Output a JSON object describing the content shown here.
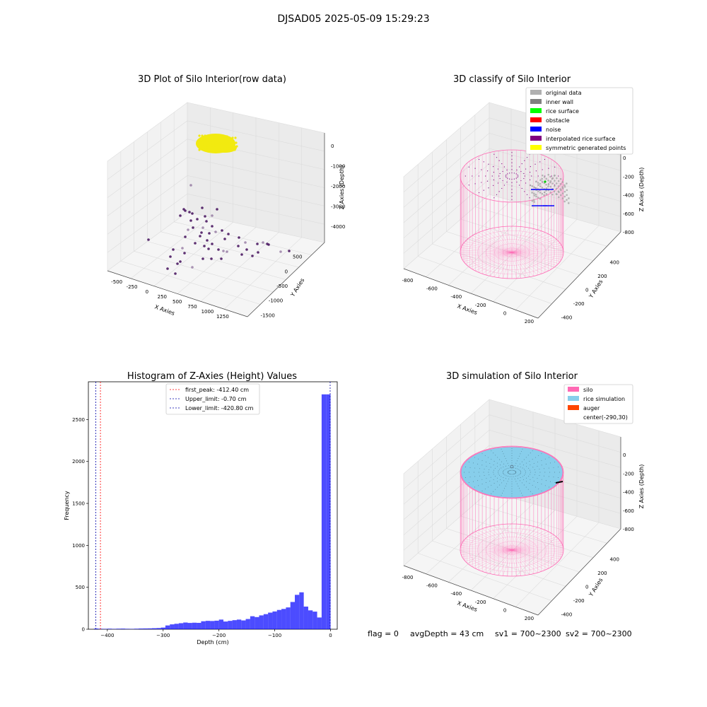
{
  "suptitle": "DJSAD05 2025-05-09 15:29:23",
  "footer": {
    "flag": "flag = 0",
    "avg_depth": "avgDepth = 43 cm",
    "sv1": "sv1 = 700~2300",
    "sv2": "sv2 = 700~2300"
  },
  "colors": {
    "raw_surface": "#f2ea10",
    "raw_points": "#4b1a63",
    "grey": "#a8a8a8",
    "noise": "#0000ff",
    "silo": "#ff69b4",
    "rice": "#87ceeb",
    "auger": "#ff4500",
    "hist_bar": "#0000ff",
    "first_peak": "#ff0000",
    "limit": "#0000aa"
  },
  "chart_data": [
    {
      "type": "scatter",
      "title": "3D Plot of Silo Interior(row data)",
      "xlabel": "X Axies",
      "ylabel": "Y Axies",
      "zlabel": "Z Axies (Depth)",
      "x_ticks": [
        "-500",
        "-250",
        "0",
        "250",
        "500",
        "750",
        "1000",
        "1250"
      ],
      "y_ticks": [
        "500",
        "0",
        "-500",
        "-1000",
        "-1500"
      ],
      "z_ticks": [
        "0",
        "-1000",
        "-2000",
        "-3000",
        "-4000"
      ]
    },
    {
      "type": "scatter",
      "title": "3D classify of Silo Interior",
      "xlabel": "X Axies",
      "ylabel": "Y Axies",
      "zlabel": "Z Axies (Depth)",
      "x_ticks": [
        "-800",
        "-600",
        "-400",
        "-200",
        "0",
        "200"
      ],
      "y_ticks": [
        "400",
        "200",
        "0",
        "-200",
        "-400"
      ],
      "z_ticks": [
        "0",
        "-200",
        "-400",
        "-600",
        "-800"
      ],
      "legend": [
        {
          "label": "original data",
          "color": "#b0b0b0"
        },
        {
          "label": "inner wall",
          "color": "#808080"
        },
        {
          "label": "rice surface",
          "color": "#00ff00"
        },
        {
          "label": "obstacle",
          "color": "#ff0000"
        },
        {
          "label": "noise",
          "color": "#0000ff"
        },
        {
          "label": "interpolated rice surface",
          "color": "#800080"
        },
        {
          "label": "symmetric generated points",
          "color": "#ffff00"
        }
      ]
    },
    {
      "type": "bar",
      "title": "Histogram of Z-Axies (Height) Values",
      "xlabel": "Depth (cm)",
      "ylabel": "Frequency",
      "xlim": [
        -434,
        12
      ],
      "ylim": [
        0,
        2950
      ],
      "x_ticks": [
        -400,
        -300,
        -200,
        -100,
        0
      ],
      "y_ticks": [
        0,
        500,
        1000,
        1500,
        2000,
        2500
      ],
      "bin_width": 8,
      "bins": [
        {
          "x": -424,
          "y": 8
        },
        {
          "x": -416,
          "y": 5
        },
        {
          "x": -408,
          "y": 4
        },
        {
          "x": -400,
          "y": 6
        },
        {
          "x": -392,
          "y": 4
        },
        {
          "x": -384,
          "y": 6
        },
        {
          "x": -376,
          "y": 7
        },
        {
          "x": -368,
          "y": 5
        },
        {
          "x": -360,
          "y": 4
        },
        {
          "x": -352,
          "y": 6
        },
        {
          "x": -344,
          "y": 8
        },
        {
          "x": -336,
          "y": 9
        },
        {
          "x": -328,
          "y": 10
        },
        {
          "x": -320,
          "y": 12
        },
        {
          "x": -312,
          "y": 14
        },
        {
          "x": -304,
          "y": 20
        },
        {
          "x": -296,
          "y": 45
        },
        {
          "x": -288,
          "y": 58
        },
        {
          "x": -280,
          "y": 65
        },
        {
          "x": -272,
          "y": 72
        },
        {
          "x": -264,
          "y": 80
        },
        {
          "x": -256,
          "y": 75
        },
        {
          "x": -248,
          "y": 78
        },
        {
          "x": -240,
          "y": 76
        },
        {
          "x": -232,
          "y": 95
        },
        {
          "x": -224,
          "y": 100
        },
        {
          "x": -216,
          "y": 98
        },
        {
          "x": -208,
          "y": 102
        },
        {
          "x": -200,
          "y": 115
        },
        {
          "x": -192,
          "y": 92
        },
        {
          "x": -184,
          "y": 100
        },
        {
          "x": -176,
          "y": 108
        },
        {
          "x": -168,
          "y": 115
        },
        {
          "x": -160,
          "y": 105
        },
        {
          "x": -152,
          "y": 122
        },
        {
          "x": -144,
          "y": 155
        },
        {
          "x": -136,
          "y": 145
        },
        {
          "x": -128,
          "y": 165
        },
        {
          "x": -120,
          "y": 180
        },
        {
          "x": -112,
          "y": 198
        },
        {
          "x": -104,
          "y": 212
        },
        {
          "x": -96,
          "y": 230
        },
        {
          "x": -88,
          "y": 242
        },
        {
          "x": -80,
          "y": 260
        },
        {
          "x": -72,
          "y": 325
        },
        {
          "x": -64,
          "y": 410
        },
        {
          "x": -56,
          "y": 440
        },
        {
          "x": -48,
          "y": 270
        },
        {
          "x": -40,
          "y": 225
        },
        {
          "x": -32,
          "y": 210
        },
        {
          "x": -24,
          "y": 140
        },
        {
          "x": -16,
          "y": 2800
        },
        {
          "x": -8,
          "y": 2800
        }
      ],
      "vlines": [
        {
          "label": "first_peak: -412.40 cm",
          "x": -412.4,
          "style": "first_peak"
        },
        {
          "label": "Upper_limit: -0.70 cm",
          "x": -0.7,
          "style": "limit"
        },
        {
          "label": "Lower_limit: -420.80 cm",
          "x": -420.8,
          "style": "limit"
        }
      ]
    },
    {
      "type": "scatter",
      "title": "3D simulation of Silo Interior",
      "xlabel": "X Axies",
      "ylabel": "Y Axies",
      "zlabel": "Z Axies (Depth)",
      "x_ticks": [
        "-800",
        "-600",
        "-400",
        "-200",
        "0",
        "200"
      ],
      "y_ticks": [
        "400",
        "200",
        "0",
        "-200",
        "-400"
      ],
      "z_ticks": [
        "0",
        "-200",
        "-400",
        "-600",
        "-800"
      ],
      "legend": [
        {
          "label": "silo",
          "color": "#ff69b4"
        },
        {
          "label": "rice simulation",
          "color": "#87ceeb"
        },
        {
          "label": "auger",
          "color": "#ff4500"
        },
        {
          "label": "center(-290,30)",
          "color": ""
        }
      ]
    }
  ]
}
